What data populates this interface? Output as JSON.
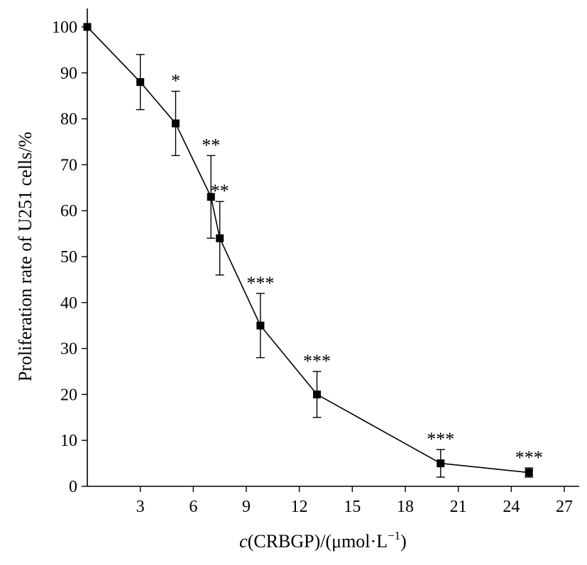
{
  "chart_data": {
    "type": "line",
    "xlabel": {
      "italic_symbol": "c",
      "text": "(CRBGP)/(μmol·L",
      "superscript": "−1",
      "close": ")"
    },
    "ylabel": "Proliferation rate of U251 cells/%",
    "xlim": [
      0,
      27
    ],
    "ylim": [
      0,
      100
    ],
    "x_ticks": [
      3,
      6,
      9,
      12,
      15,
      18,
      21,
      24,
      27
    ],
    "y_ticks": [
      0,
      10,
      20,
      30,
      40,
      50,
      60,
      70,
      80,
      90,
      100
    ],
    "grid": false,
    "marker": "square",
    "color": "#000000",
    "series": [
      {
        "x": [
          0,
          3,
          5,
          7,
          7.5,
          9.8,
          13,
          20,
          25
        ],
        "y": [
          100,
          88,
          79,
          63,
          54,
          35,
          20,
          5,
          3
        ],
        "error": [
          0,
          6,
          7,
          9,
          8,
          7,
          5,
          3,
          1
        ],
        "significance": [
          "",
          "",
          "*",
          "**",
          "**",
          "***",
          "***",
          "***",
          "***"
        ]
      }
    ]
  }
}
